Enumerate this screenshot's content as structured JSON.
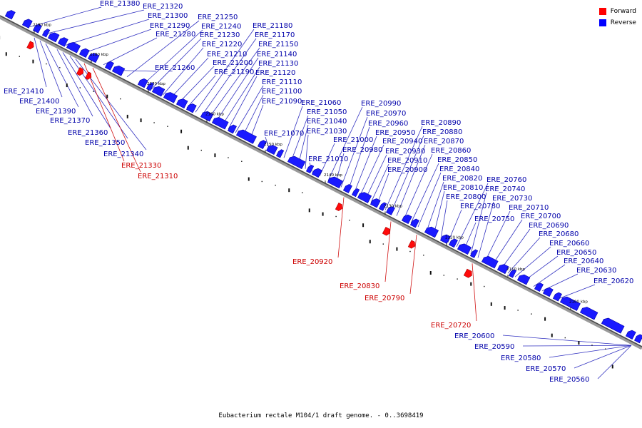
{
  "legend": {
    "forward_label": "Forward",
    "reverse_label": "Reverse",
    "forward_color": "#ff0000",
    "reverse_color": "#0000ff"
  },
  "caption": "Eubacterium rectale M104/1 draft genome. - 0..3698419",
  "label_color_reverse": "#0000aa",
  "label_color_forward": "#cc0000",
  "kbp_ticks": [
    "2190 kbp",
    "2180 kbp",
    "2170 kbp",
    "2160 kbp",
    "2150 kbp",
    "2140 kbp",
    "2130 kbp",
    "2120 kbp",
    "2110 kbp",
    "2100 kbp"
  ],
  "genes": [
    {
      "name": "ERE_21380",
      "strand": "reverse"
    },
    {
      "name": "ERE_21320",
      "strand": "reverse"
    },
    {
      "name": "ERE_21300",
      "strand": "reverse"
    },
    {
      "name": "ERE_21290",
      "strand": "reverse"
    },
    {
      "name": "ERE_21280",
      "strand": "reverse"
    },
    {
      "name": "ERE_21260",
      "strand": "reverse"
    },
    {
      "name": "ERE_21250",
      "strand": "reverse"
    },
    {
      "name": "ERE_21240",
      "strand": "reverse"
    },
    {
      "name": "ERE_21230",
      "strand": "reverse"
    },
    {
      "name": "ERE_21220",
      "strand": "reverse"
    },
    {
      "name": "ERE_21210",
      "strand": "reverse"
    },
    {
      "name": "ERE_21200",
      "strand": "reverse"
    },
    {
      "name": "ERE_21190",
      "strand": "reverse"
    },
    {
      "name": "ERE_21180",
      "strand": "reverse"
    },
    {
      "name": "ERE_21170",
      "strand": "reverse"
    },
    {
      "name": "ERE_21150",
      "strand": "reverse"
    },
    {
      "name": "ERE_21140",
      "strand": "reverse"
    },
    {
      "name": "ERE_21130",
      "strand": "reverse"
    },
    {
      "name": "ERE_21120",
      "strand": "reverse"
    },
    {
      "name": "ERE_21110",
      "strand": "reverse"
    },
    {
      "name": "ERE_21100",
      "strand": "reverse"
    },
    {
      "name": "ERE_21090",
      "strand": "reverse"
    },
    {
      "name": "ERE_21070",
      "strand": "reverse"
    },
    {
      "name": "ERE_21060",
      "strand": "reverse"
    },
    {
      "name": "ERE_21050",
      "strand": "reverse"
    },
    {
      "name": "ERE_21040",
      "strand": "reverse"
    },
    {
      "name": "ERE_21030",
      "strand": "reverse"
    },
    {
      "name": "ERE_21010",
      "strand": "reverse"
    },
    {
      "name": "ERE_21000",
      "strand": "reverse"
    },
    {
      "name": "ERE_20990",
      "strand": "reverse"
    },
    {
      "name": "ERE_20980",
      "strand": "reverse"
    },
    {
      "name": "ERE_20970",
      "strand": "reverse"
    },
    {
      "name": "ERE_20960",
      "strand": "reverse"
    },
    {
      "name": "ERE_20950",
      "strand": "reverse"
    },
    {
      "name": "ERE_20940",
      "strand": "reverse"
    },
    {
      "name": "ERE_20930",
      "strand": "reverse"
    },
    {
      "name": "ERE_20910",
      "strand": "reverse"
    },
    {
      "name": "ERE_20900",
      "strand": "reverse"
    },
    {
      "name": "ERE_20890",
      "strand": "reverse"
    },
    {
      "name": "ERE_20880",
      "strand": "reverse"
    },
    {
      "name": "ERE_20870",
      "strand": "reverse"
    },
    {
      "name": "ERE_20860",
      "strand": "reverse"
    },
    {
      "name": "ERE_20850",
      "strand": "reverse"
    },
    {
      "name": "ERE_20840",
      "strand": "reverse"
    },
    {
      "name": "ERE_20820",
      "strand": "reverse"
    },
    {
      "name": "ERE_20810",
      "strand": "reverse"
    },
    {
      "name": "ERE_20800",
      "strand": "reverse"
    },
    {
      "name": "ERE_20780",
      "strand": "reverse"
    },
    {
      "name": "ERE_20760",
      "strand": "reverse"
    },
    {
      "name": "ERE_20750",
      "strand": "reverse"
    },
    {
      "name": "ERE_20740",
      "strand": "reverse"
    },
    {
      "name": "ERE_20730",
      "strand": "reverse"
    },
    {
      "name": "ERE_20710",
      "strand": "reverse"
    },
    {
      "name": "ERE_20700",
      "strand": "reverse"
    },
    {
      "name": "ERE_20690",
      "strand": "reverse"
    },
    {
      "name": "ERE_20680",
      "strand": "reverse"
    },
    {
      "name": "ERE_20660",
      "strand": "reverse"
    },
    {
      "name": "ERE_20650",
      "strand": "reverse"
    },
    {
      "name": "ERE_20640",
      "strand": "reverse"
    },
    {
      "name": "ERE_20630",
      "strand": "reverse"
    },
    {
      "name": "ERE_20620",
      "strand": "reverse"
    },
    {
      "name": "ERE_21410",
      "strand": "reverse"
    },
    {
      "name": "ERE_21400",
      "strand": "reverse"
    },
    {
      "name": "ERE_21390",
      "strand": "reverse"
    },
    {
      "name": "ERE_21370",
      "strand": "reverse"
    },
    {
      "name": "ERE_21360",
      "strand": "reverse"
    },
    {
      "name": "ERE_21350",
      "strand": "reverse"
    },
    {
      "name": "ERE_21340",
      "strand": "reverse"
    },
    {
      "name": "ERE_21330",
      "strand": "forward"
    },
    {
      "name": "ERE_21310",
      "strand": "forward"
    },
    {
      "name": "ERE_20920",
      "strand": "forward"
    },
    {
      "name": "ERE_20830",
      "strand": "forward"
    },
    {
      "name": "ERE_20790",
      "strand": "forward"
    },
    {
      "name": "ERE_20720",
      "strand": "forward"
    },
    {
      "name": "ERE_20600",
      "strand": "reverse"
    },
    {
      "name": "ERE_20590",
      "strand": "reverse"
    },
    {
      "name": "ERE_20580",
      "strand": "reverse"
    },
    {
      "name": "ERE_20570",
      "strand": "reverse"
    },
    {
      "name": "ERE_20560",
      "strand": "reverse"
    }
  ]
}
